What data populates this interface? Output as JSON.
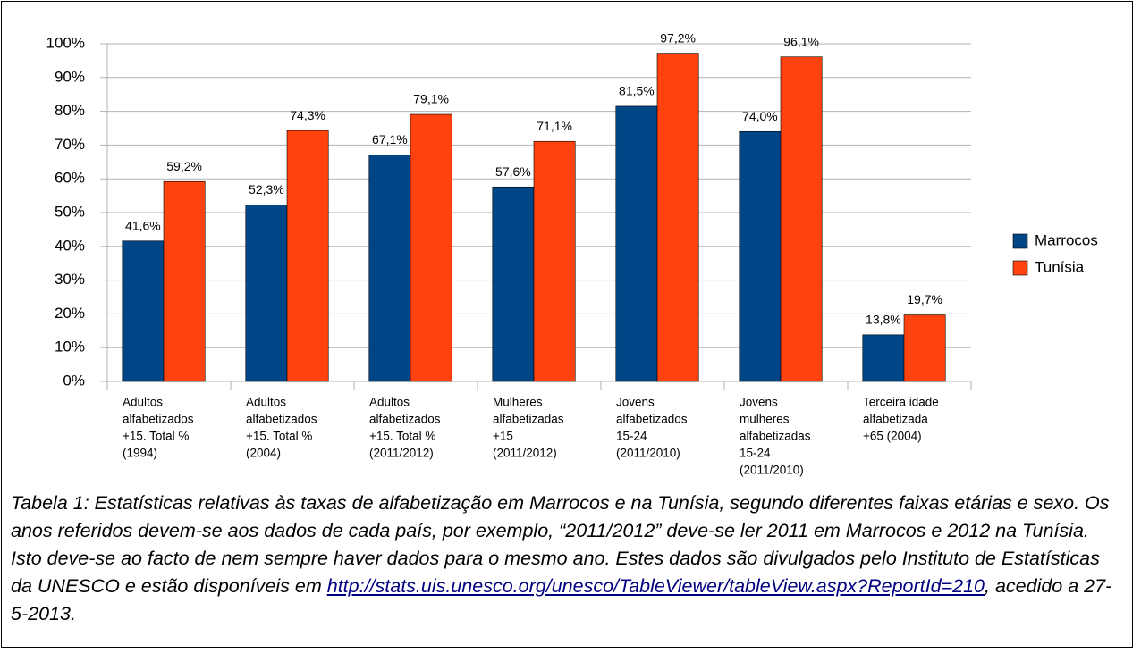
{
  "chart_data": {
    "type": "bar",
    "categories": [
      [
        "Adultos",
        "alfabetizados",
        "+15. Total %",
        "(1994)"
      ],
      [
        "Adultos",
        "alfabetizados",
        "+15. Total %",
        "(2004)"
      ],
      [
        "Adultos",
        "alfabetizados",
        "+15. Total %",
        "(2011/2012)"
      ],
      [
        "Mulheres",
        "alfabetizadas",
        "+15",
        "(2011/2012)"
      ],
      [
        "Jovens",
        "alfabetizados",
        "15-24",
        "(2011/2010)"
      ],
      [
        "Jovens",
        "mulheres",
        "alfabetizadas",
        "15-24",
        "(2011/2010)"
      ],
      [
        "Terceira idade",
        "alfabetizada",
        "+65 (2004)"
      ]
    ],
    "series": [
      {
        "name": "Marrocos",
        "color": "#004586",
        "values": [
          41.6,
          52.3,
          67.1,
          57.6,
          81.5,
          74.0,
          13.8
        ],
        "value_labels": [
          "41,6%",
          "52,3%",
          "67,1%",
          "57,6%",
          "81,5%",
          "74,0%",
          "13,8%"
        ]
      },
      {
        "name": "Tunísia",
        "color": "#ff420e",
        "values": [
          59.2,
          74.3,
          79.1,
          71.1,
          97.2,
          96.1,
          19.7
        ],
        "value_labels": [
          "59,2%",
          "74,3%",
          "79,1%",
          "71,1%",
          "97,2%",
          "96,1%",
          "19,7%"
        ]
      }
    ],
    "ylim": [
      0,
      100
    ],
    "yticks": [
      {
        "value": 0,
        "label": "0%"
      },
      {
        "value": 10,
        "label": "10%"
      },
      {
        "value": 20,
        "label": "20%"
      },
      {
        "value": 30,
        "label": "30%"
      },
      {
        "value": 40,
        "label": "40%"
      },
      {
        "value": 50,
        "label": "50%"
      },
      {
        "value": 60,
        "label": "60%"
      },
      {
        "value": 70,
        "label": "70%"
      },
      {
        "value": 80,
        "label": "80%"
      },
      {
        "value": 90,
        "label": "90%"
      },
      {
        "value": 100,
        "label": "100%"
      }
    ],
    "grid": true,
    "legend": "right"
  },
  "caption": {
    "text": "Tabela 1: Estatísticas relativas às taxas de alfabetização em Marrocos e na Tunísia, segundo diferentes faixas etárias e sexo. Os anos referidos devem-se aos dados de cada país, por exemplo, “2011/2012” deve-se ler 2011 em Marrocos e 2012 na Tunísia. Isto deve-se ao facto de nem sempre haver dados para o mesmo ano. Estes dados são divulgados pelo Instituto de Estatísticas da UNESCO e estão disponíveis em ",
    "link": "http://stats.uis.unesco.org/unesco/TableViewer/tableView.aspx?ReportId=210",
    "after": ", acedido a 27-5-2013."
  }
}
